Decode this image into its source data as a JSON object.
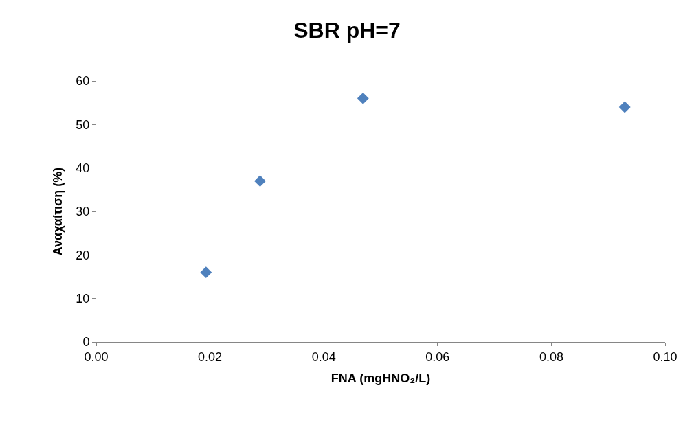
{
  "chart_data": {
    "type": "scatter",
    "title": "SBR pH=7",
    "xlabel": "FNA (mgHNO₂/L)",
    "ylabel": "Αναχαίτιση (%)",
    "x": [
      0.0193,
      0.0288,
      0.0469,
      0.0929
    ],
    "series": [
      {
        "color": "#4f81bd",
        "values": [
          16,
          37,
          56,
          54
        ]
      }
    ],
    "xlim": [
      0,
      0.1
    ],
    "xticks": [
      {
        "value": 0,
        "label": "0.00"
      },
      {
        "value": 0.02,
        "label": "0.02"
      },
      {
        "value": 0.04,
        "label": "0.04"
      },
      {
        "value": 0.06,
        "label": "0.06"
      },
      {
        "value": 0.08,
        "label": "0.08"
      },
      {
        "value": 0.1,
        "label": "0.10"
      }
    ],
    "ylim": [
      0,
      60
    ],
    "yticks": [
      0,
      10,
      20,
      30,
      40,
      50,
      60
    ],
    "legend": false,
    "marker": "diamond"
  }
}
